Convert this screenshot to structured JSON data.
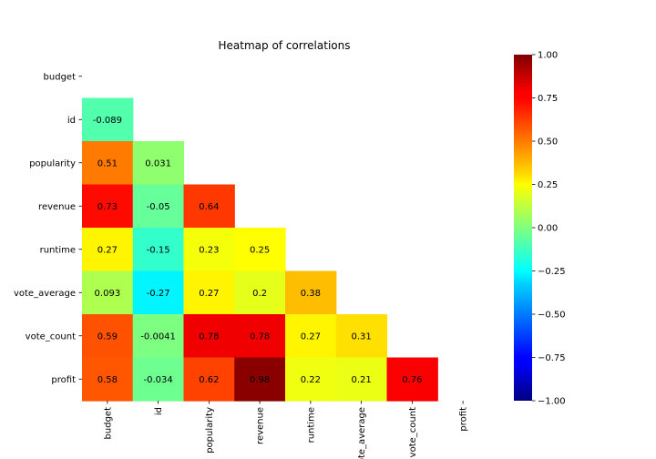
{
  "chart_data": {
    "type": "heatmap",
    "title": "Heatmap of correlations",
    "rows": [
      "budget",
      "id",
      "popularity",
      "revenue",
      "runtime",
      "vote_average",
      "vote_count",
      "profit"
    ],
    "columns": [
      "budget",
      "id",
      "popularity",
      "revenue",
      "runtime",
      "vote_average",
      "vote_count",
      "profit"
    ],
    "mask": "upper-triangle-and-diagonal",
    "values": [
      [
        null,
        null,
        null,
        null,
        null,
        null,
        null,
        null
      ],
      [
        -0.089,
        null,
        null,
        null,
        null,
        null,
        null,
        null
      ],
      [
        0.51,
        0.031,
        null,
        null,
        null,
        null,
        null,
        null
      ],
      [
        0.73,
        -0.05,
        0.64,
        null,
        null,
        null,
        null,
        null
      ],
      [
        0.27,
        -0.15,
        0.23,
        0.25,
        null,
        null,
        null,
        null
      ],
      [
        0.093,
        -0.27,
        0.27,
        0.2,
        0.38,
        null,
        null,
        null
      ],
      [
        0.59,
        -0.0041,
        0.78,
        0.78,
        0.27,
        0.31,
        null,
        null
      ],
      [
        0.58,
        -0.034,
        0.62,
        0.98,
        0.22,
        0.21,
        0.76,
        null
      ]
    ],
    "annotations": [
      [
        null,
        null,
        null,
        null,
        null,
        null,
        null,
        null
      ],
      [
        "-0.089",
        null,
        null,
        null,
        null,
        null,
        null,
        null
      ],
      [
        "0.51",
        "0.031",
        null,
        null,
        null,
        null,
        null,
        null
      ],
      [
        "0.73",
        "-0.05",
        "0.64",
        null,
        null,
        null,
        null,
        null
      ],
      [
        "0.27",
        "-0.15",
        "0.23",
        "0.25",
        null,
        null,
        null,
        null
      ],
      [
        "0.093",
        "-0.27",
        "0.27",
        "0.2",
        "0.38",
        null,
        null,
        null
      ],
      [
        "0.59",
        "-0.0041",
        "0.78",
        "0.78",
        "0.27",
        "0.31",
        null,
        null
      ],
      [
        "0.58",
        "-0.034",
        "0.62",
        "0.98",
        "0.22",
        "0.21",
        "0.76",
        null
      ]
    ],
    "colormap": "jet",
    "vmin": -1,
    "vmax": 1,
    "colorbar_ticks": [
      "1.00",
      "0.75",
      "0.50",
      "0.25",
      "0.00",
      "−0.25",
      "−0.50",
      "−0.75",
      "−1.00"
    ],
    "grid": false
  }
}
